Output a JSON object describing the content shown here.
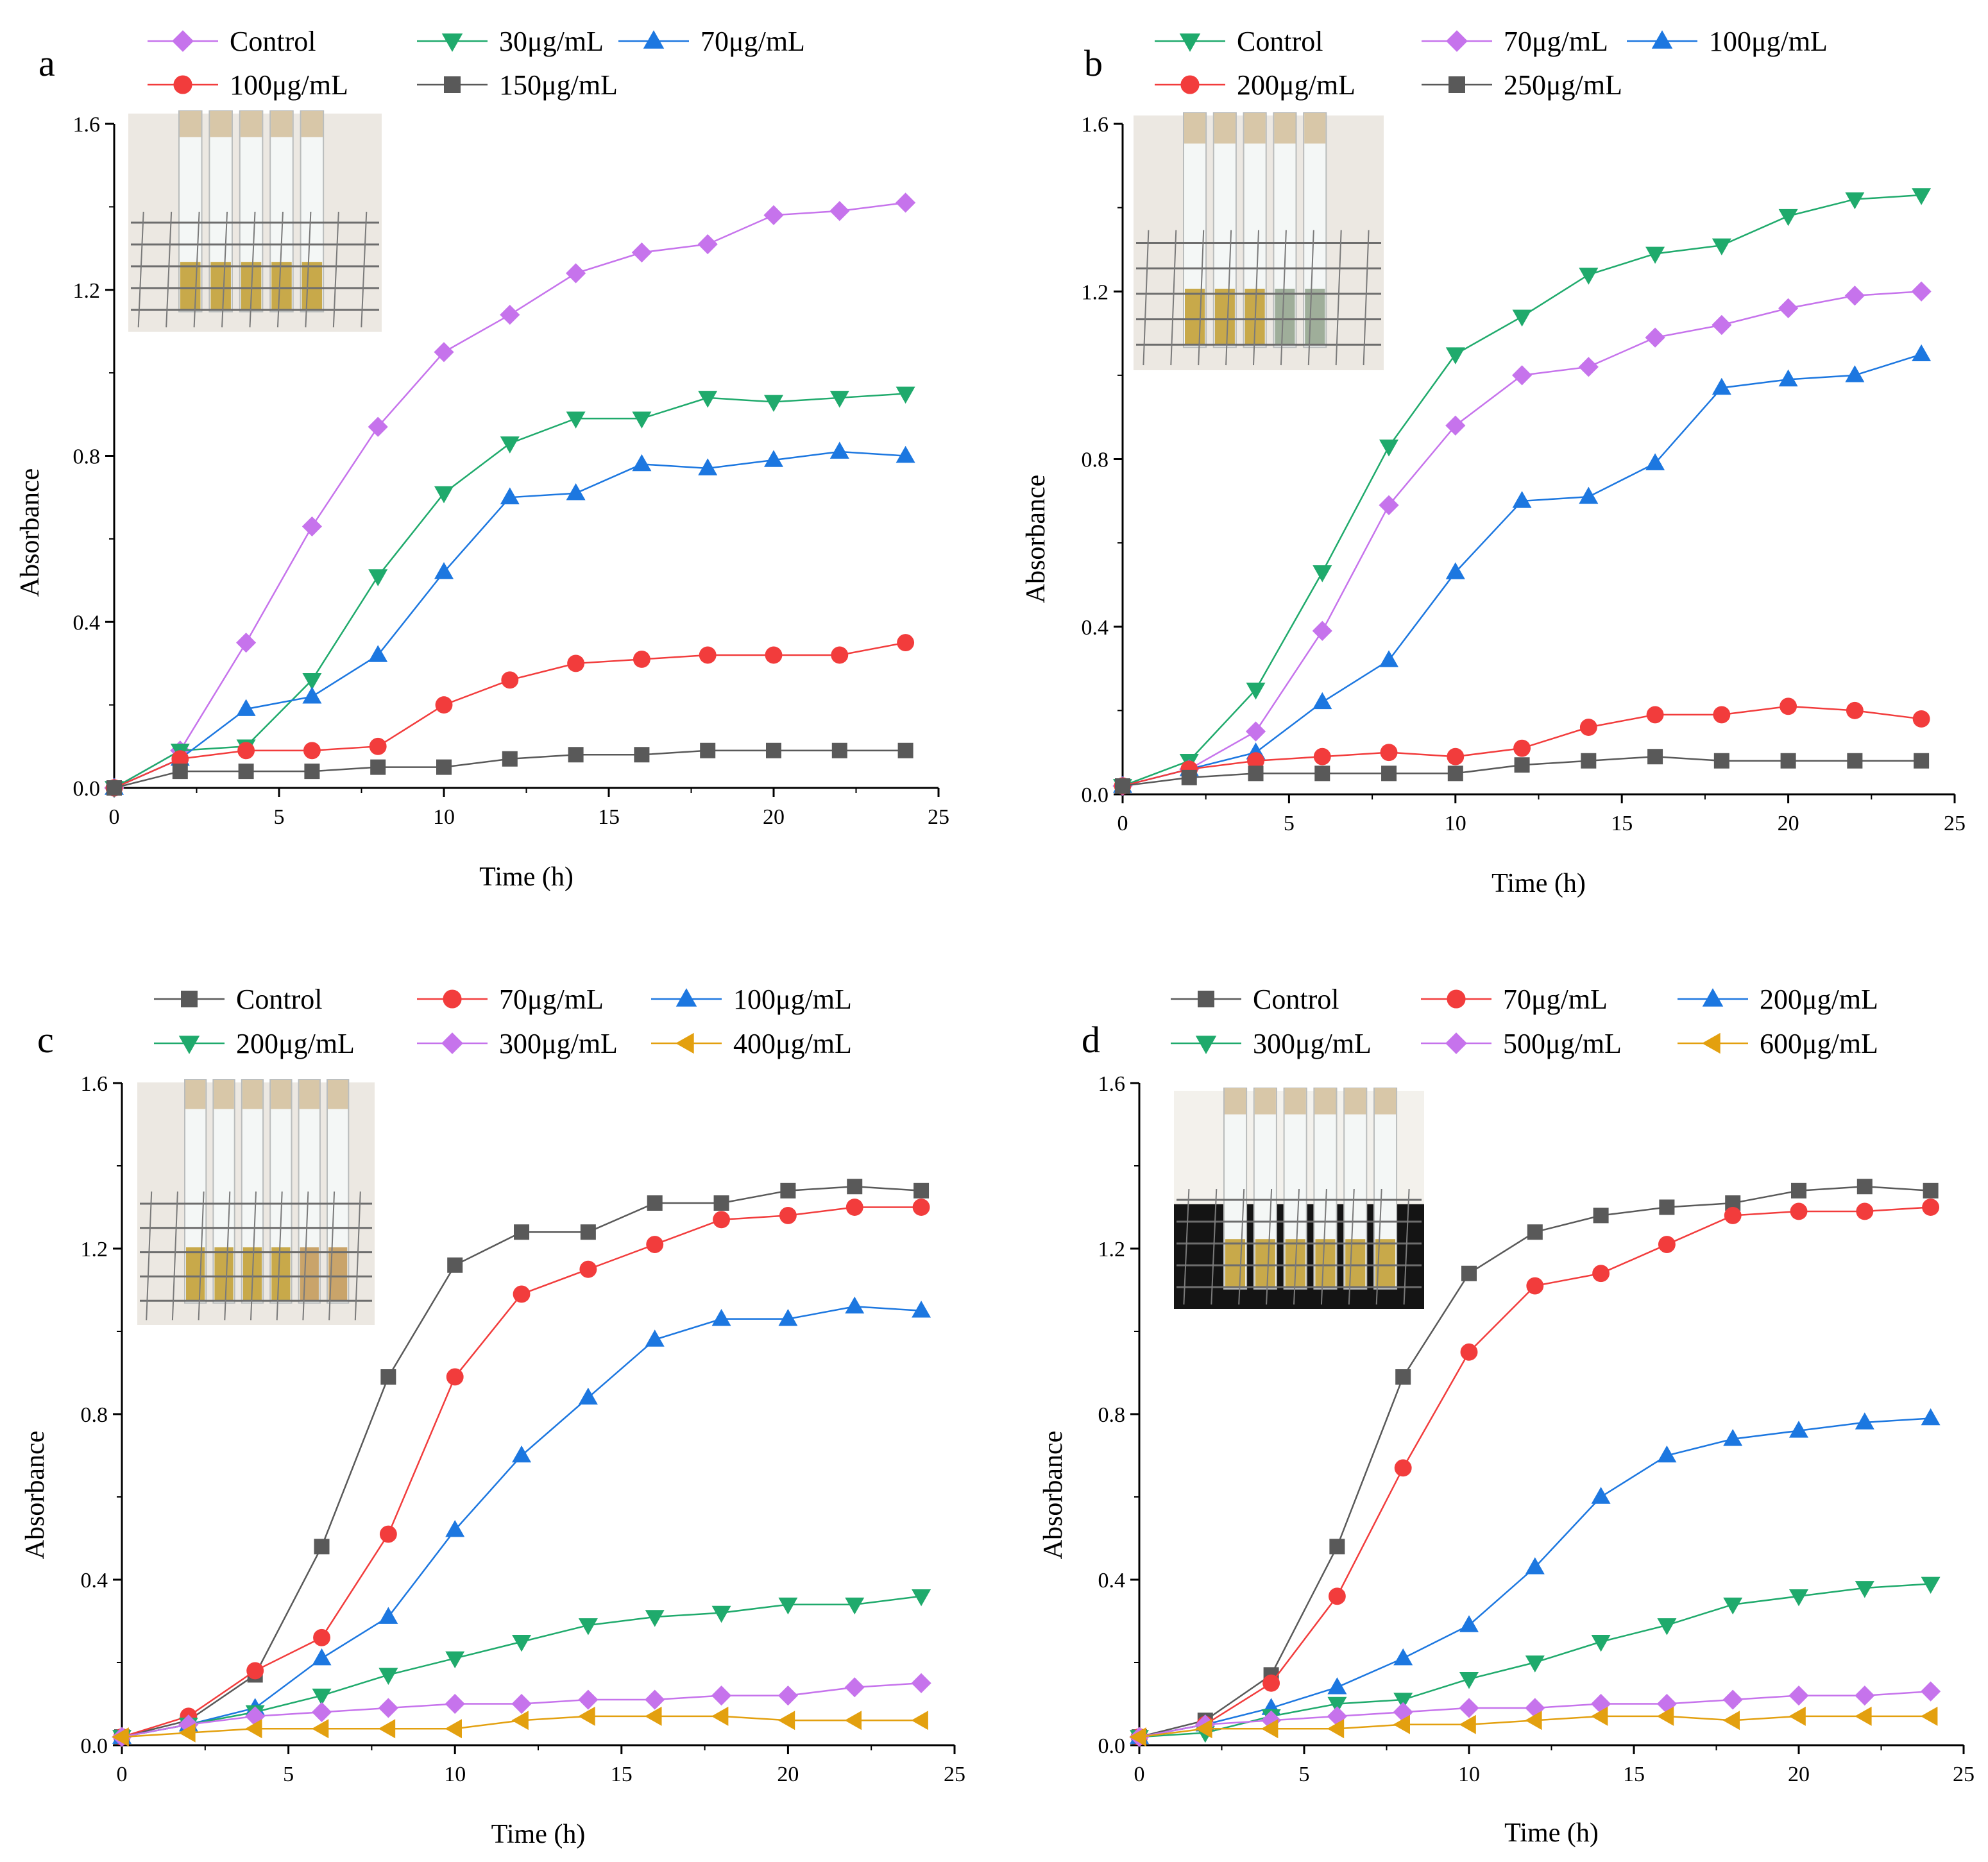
{
  "colors": {
    "gray": "#595959",
    "red": "#f23c3c",
    "blue": "#1c77e0",
    "green": "#1faa6c",
    "purple": "#c673ec",
    "orange": "#e3a00f"
  },
  "chart_data": [
    {
      "type": "line",
      "panel_label": "a",
      "xlabel": "Time (h)",
      "ylabel": "Absorbance",
      "xlim": [
        0,
        25
      ],
      "ylim": [
        0,
        1.6
      ],
      "xticks": [
        0,
        5,
        10,
        15,
        20,
        25
      ],
      "yticks": [
        0.0,
        0.4,
        0.8,
        1.2,
        1.6
      ],
      "ytick_labels": [
        "0.0",
        "0.4",
        "0.8",
        "1.2",
        "1.6"
      ],
      "legend": "top",
      "inset_photo": "tubes-in-rack",
      "series": [
        {
          "name": "Control",
          "marker": "diamond",
          "color": "#c673ec",
          "x": [
            0,
            2,
            4,
            6,
            8,
            10,
            12,
            14,
            16,
            18,
            20,
            22,
            24
          ],
          "y": [
            0.0,
            0.09,
            0.35,
            0.63,
            0.87,
            1.05,
            1.14,
            1.24,
            1.29,
            1.31,
            1.38,
            1.39,
            1.41
          ]
        },
        {
          "name": "30μg/mL",
          "marker": "triangle-down",
          "color": "#1faa6c",
          "x": [
            0,
            2,
            4,
            6,
            8,
            10,
            12,
            14,
            16,
            18,
            20,
            22,
            24
          ],
          "y": [
            0.0,
            0.09,
            0.1,
            0.26,
            0.51,
            0.71,
            0.83,
            0.89,
            0.89,
            0.94,
            0.93,
            0.94,
            0.95
          ]
        },
        {
          "name": "70μg/mL",
          "marker": "triangle-up",
          "color": "#1c77e0",
          "x": [
            0,
            2,
            4,
            6,
            8,
            10,
            12,
            14,
            16,
            18,
            20,
            22,
            24
          ],
          "y": [
            0.0,
            0.07,
            0.19,
            0.22,
            0.32,
            0.52,
            0.7,
            0.71,
            0.78,
            0.77,
            0.79,
            0.81,
            0.8
          ]
        },
        {
          "name": "100μg/mL",
          "marker": "circle",
          "color": "#f23c3c",
          "x": [
            0,
            2,
            4,
            6,
            8,
            10,
            12,
            14,
            16,
            18,
            20,
            22,
            24
          ],
          "y": [
            0.0,
            0.07,
            0.09,
            0.09,
            0.1,
            0.2,
            0.26,
            0.3,
            0.31,
            0.32,
            0.32,
            0.32,
            0.35
          ]
        },
        {
          "name": "150μg/mL",
          "marker": "square",
          "color": "#595959",
          "x": [
            0,
            2,
            4,
            6,
            8,
            10,
            12,
            14,
            16,
            18,
            20,
            22,
            24
          ],
          "y": [
            0.0,
            0.04,
            0.04,
            0.04,
            0.05,
            0.05,
            0.07,
            0.08,
            0.08,
            0.09,
            0.09,
            0.09,
            0.09
          ]
        }
      ]
    },
    {
      "type": "line",
      "panel_label": "b",
      "xlabel": "Time (h)",
      "ylabel": "Absorbance",
      "xlim": [
        0,
        25
      ],
      "ylim": [
        0,
        1.6
      ],
      "xticks": [
        0,
        5,
        10,
        15,
        20,
        25
      ],
      "yticks": [
        0.0,
        0.4,
        0.8,
        1.2,
        1.6
      ],
      "ytick_labels": [
        "0.0",
        "0.4",
        "0.8",
        "1.2",
        "1.6"
      ],
      "legend": "top",
      "inset_photo": "tubes-in-rack",
      "series": [
        {
          "name": "Control",
          "marker": "triangle-down",
          "color": "#1faa6c",
          "x": [
            0,
            2,
            4,
            6,
            8,
            10,
            12,
            14,
            16,
            18,
            20,
            22,
            24
          ],
          "y": [
            0.02,
            0.08,
            0.25,
            0.53,
            0.83,
            1.05,
            1.14,
            1.24,
            1.29,
            1.31,
            1.38,
            1.42,
            1.43
          ]
        },
        {
          "name": "70μg/mL",
          "marker": "diamond",
          "color": "#c673ec",
          "x": [
            0,
            2,
            4,
            6,
            8,
            10,
            12,
            14,
            16,
            18,
            20,
            22,
            24
          ],
          "y": [
            0.02,
            0.06,
            0.15,
            0.39,
            0.69,
            0.88,
            1.0,
            1.02,
            1.09,
            1.12,
            1.16,
            1.19,
            1.2
          ]
        },
        {
          "name": "100μg/mL",
          "marker": "triangle-up",
          "color": "#1c77e0",
          "x": [
            0,
            2,
            4,
            6,
            8,
            10,
            12,
            14,
            16,
            18,
            20,
            22,
            24
          ],
          "y": [
            0.02,
            0.06,
            0.1,
            0.22,
            0.32,
            0.53,
            0.7,
            0.71,
            0.79,
            0.97,
            0.99,
            1.0,
            1.05
          ]
        },
        {
          "name": "200μg/mL",
          "marker": "circle",
          "color": "#f23c3c",
          "x": [
            0,
            2,
            4,
            6,
            8,
            10,
            12,
            14,
            16,
            18,
            20,
            22,
            24
          ],
          "y": [
            0.02,
            0.06,
            0.08,
            0.09,
            0.1,
            0.09,
            0.11,
            0.16,
            0.19,
            0.19,
            0.21,
            0.2,
            0.18
          ]
        },
        {
          "name": "250μg/mL",
          "marker": "square",
          "color": "#595959",
          "x": [
            0,
            2,
            4,
            6,
            8,
            10,
            12,
            14,
            16,
            18,
            20,
            22,
            24
          ],
          "y": [
            0.02,
            0.04,
            0.05,
            0.05,
            0.05,
            0.05,
            0.07,
            0.08,
            0.09,
            0.08,
            0.08,
            0.08,
            0.08
          ]
        }
      ]
    },
    {
      "type": "line",
      "panel_label": "c",
      "xlabel": "Time (h)",
      "ylabel": "Absorbance",
      "xlim": [
        0,
        25
      ],
      "ylim": [
        0,
        1.6
      ],
      "xticks": [
        0,
        5,
        10,
        15,
        20,
        25
      ],
      "yticks": [
        0.0,
        0.4,
        0.8,
        1.2,
        1.6
      ],
      "ytick_labels": [
        "0.0",
        "0.4",
        "0.8",
        "1.2",
        "1.6"
      ],
      "legend": "top",
      "inset_photo": "tubes-in-rack",
      "series": [
        {
          "name": "Control",
          "marker": "square",
          "color": "#595959",
          "x": [
            0,
            2,
            4,
            6,
            8,
            10,
            12,
            14,
            16,
            18,
            20,
            22,
            24
          ],
          "y": [
            0.02,
            0.06,
            0.17,
            0.48,
            0.89,
            1.16,
            1.24,
            1.24,
            1.31,
            1.31,
            1.34,
            1.35,
            1.34
          ]
        },
        {
          "name": "70μg/mL",
          "marker": "circle",
          "color": "#f23c3c",
          "x": [
            0,
            2,
            4,
            6,
            8,
            10,
            12,
            14,
            16,
            18,
            20,
            22,
            24
          ],
          "y": [
            0.02,
            0.07,
            0.18,
            0.26,
            0.51,
            0.89,
            1.09,
            1.15,
            1.21,
            1.27,
            1.28,
            1.3,
            1.3
          ]
        },
        {
          "name": "100μg/mL",
          "marker": "triangle-up",
          "color": "#1c77e0",
          "x": [
            0,
            2,
            4,
            6,
            8,
            10,
            12,
            14,
            16,
            18,
            20,
            22,
            24
          ],
          "y": [
            0.02,
            0.05,
            0.09,
            0.21,
            0.31,
            0.52,
            0.7,
            0.84,
            0.98,
            1.03,
            1.03,
            1.06,
            1.05
          ]
        },
        {
          "name": "200μg/mL",
          "marker": "triangle-down",
          "color": "#1faa6c",
          "x": [
            0,
            2,
            4,
            6,
            8,
            10,
            12,
            14,
            16,
            18,
            20,
            22,
            24
          ],
          "y": [
            0.02,
            0.05,
            0.08,
            0.12,
            0.17,
            0.21,
            0.25,
            0.29,
            0.31,
            0.32,
            0.34,
            0.34,
            0.36
          ]
        },
        {
          "name": "300μg/mL",
          "marker": "diamond",
          "color": "#c673ec",
          "x": [
            0,
            2,
            4,
            6,
            8,
            10,
            12,
            14,
            16,
            18,
            20,
            22,
            24
          ],
          "y": [
            0.02,
            0.05,
            0.07,
            0.08,
            0.09,
            0.1,
            0.1,
            0.11,
            0.11,
            0.12,
            0.12,
            0.14,
            0.15
          ]
        },
        {
          "name": "400μg/mL",
          "marker": "triangle-left",
          "color": "#e3a00f",
          "x": [
            0,
            2,
            4,
            6,
            8,
            10,
            12,
            14,
            16,
            18,
            20,
            22,
            24
          ],
          "y": [
            0.02,
            0.03,
            0.04,
            0.04,
            0.04,
            0.04,
            0.06,
            0.07,
            0.07,
            0.07,
            0.06,
            0.06,
            0.06
          ]
        }
      ]
    },
    {
      "type": "line",
      "panel_label": "d",
      "xlabel": "Time (h)",
      "ylabel": "Absorbance",
      "xlim": [
        0,
        25
      ],
      "ylim": [
        0,
        1.6
      ],
      "xticks": [
        0,
        5,
        10,
        15,
        20,
        25
      ],
      "yticks": [
        0.0,
        0.4,
        0.8,
        1.2,
        1.6
      ],
      "ytick_labels": [
        "0.0",
        "0.4",
        "0.8",
        "1.2",
        "1.6"
      ],
      "legend": "top",
      "inset_photo": "tubes-in-rack",
      "series": [
        {
          "name": "Control",
          "marker": "square",
          "color": "#595959",
          "x": [
            0,
            2,
            4,
            6,
            8,
            10,
            12,
            14,
            16,
            18,
            20,
            22,
            24
          ],
          "y": [
            0.02,
            0.06,
            0.17,
            0.48,
            0.89,
            1.14,
            1.24,
            1.28,
            1.3,
            1.31,
            1.34,
            1.35,
            1.34
          ]
        },
        {
          "name": "70μg/mL",
          "marker": "circle",
          "color": "#f23c3c",
          "x": [
            0,
            2,
            4,
            6,
            8,
            10,
            12,
            14,
            16,
            18,
            20,
            22,
            24
          ],
          "y": [
            0.02,
            0.05,
            0.15,
            0.36,
            0.67,
            0.95,
            1.11,
            1.14,
            1.21,
            1.28,
            1.29,
            1.29,
            1.3
          ]
        },
        {
          "name": "200μg/mL",
          "marker": "triangle-up",
          "color": "#1c77e0",
          "x": [
            0,
            2,
            4,
            6,
            8,
            10,
            12,
            14,
            16,
            18,
            20,
            22,
            24
          ],
          "y": [
            0.02,
            0.05,
            0.09,
            0.14,
            0.21,
            0.29,
            0.43,
            0.6,
            0.7,
            0.74,
            0.76,
            0.78,
            0.79
          ]
        },
        {
          "name": "300μg/mL",
          "marker": "triangle-down",
          "color": "#1faa6c",
          "x": [
            0,
            2,
            4,
            6,
            8,
            10,
            12,
            14,
            16,
            18,
            20,
            22,
            24
          ],
          "y": [
            0.02,
            0.03,
            0.07,
            0.1,
            0.11,
            0.16,
            0.2,
            0.25,
            0.29,
            0.34,
            0.36,
            0.38,
            0.39
          ]
        },
        {
          "name": "500μg/mL",
          "marker": "diamond",
          "color": "#c673ec",
          "x": [
            0,
            2,
            4,
            6,
            8,
            10,
            12,
            14,
            16,
            18,
            20,
            22,
            24
          ],
          "y": [
            0.02,
            0.05,
            0.06,
            0.07,
            0.08,
            0.09,
            0.09,
            0.1,
            0.1,
            0.11,
            0.12,
            0.12,
            0.13
          ]
        },
        {
          "name": "600μg/mL",
          "marker": "triangle-left",
          "color": "#e3a00f",
          "x": [
            0,
            2,
            4,
            6,
            8,
            10,
            12,
            14,
            16,
            18,
            20,
            22,
            24
          ],
          "y": [
            0.02,
            0.04,
            0.04,
            0.04,
            0.05,
            0.05,
            0.06,
            0.07,
            0.07,
            0.06,
            0.07,
            0.07,
            0.07
          ]
        }
      ]
    }
  ]
}
